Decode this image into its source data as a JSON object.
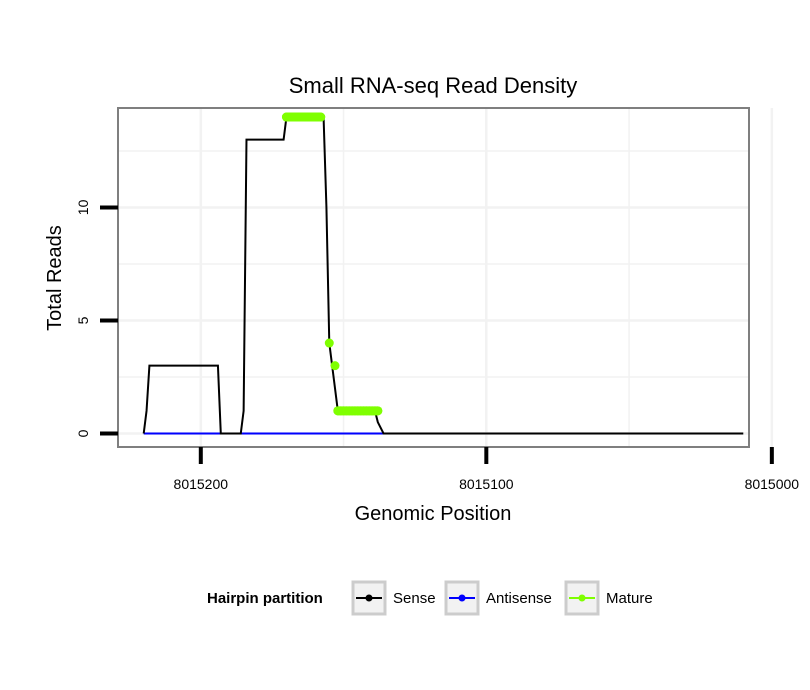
{
  "chart_data": {
    "type": "line",
    "title": "Small RNA-seq Read Density",
    "xlabel": "Genomic Position",
    "ylabel": "Total Reads",
    "x_reversed": true,
    "xlim": [
      8015229,
      8015008
    ],
    "ylim": [
      -0.6,
      14.4
    ],
    "x_ticks": [
      8015200,
      8015100,
      8015000
    ],
    "x_tick_labels": [
      "8015200",
      "8015100",
      "8015000"
    ],
    "y_ticks": [
      0,
      5,
      10
    ],
    "y_tick_labels": [
      "0",
      "5",
      "10"
    ],
    "x_minor_gridlines": [
      8015150,
      8015050
    ],
    "y_minor_gridlines": [
      2.5,
      7.5,
      12.5
    ],
    "grid": true,
    "legend": {
      "title": "Hairpin partition",
      "position": "bottom",
      "entries": [
        {
          "label": "Sense",
          "color": "#000000"
        },
        {
          "label": "Antisense",
          "color": "#0000ff"
        },
        {
          "label": "Mature",
          "color": "#7fff00"
        }
      ]
    },
    "series": [
      {
        "name": "Sense",
        "color": "#000000",
        "x": [
          8015220,
          8015219,
          8015218,
          8015194,
          8015193,
          8015186,
          8015185,
          8015184,
          8015183,
          8015171,
          8015170,
          8015158,
          8015157,
          8015156,
          8015155,
          8015154,
          8015152,
          8015151,
          8015150,
          8015149,
          8015148,
          8015147,
          8015146,
          8015145,
          8015144,
          8015143,
          8015142,
          8015141,
          8015140,
          8015139,
          8015138,
          8015136,
          8015135,
          8015134,
          8015010
        ],
        "y": [
          0,
          1,
          3,
          3,
          0,
          0,
          1,
          13,
          13,
          13,
          14,
          14,
          14,
          10,
          4,
          3,
          1,
          1,
          1,
          1,
          1,
          1,
          1,
          1,
          1,
          1,
          1,
          1,
          1,
          1,
          0.5,
          0,
          0,
          0,
          0
        ]
      },
      {
        "name": "Antisense",
        "color": "#0000ff",
        "x": [
          8015220,
          8015134
        ],
        "y": [
          0,
          0
        ]
      },
      {
        "name": "Mature",
        "color": "#7fff00",
        "x": [
          8015170,
          8015169,
          8015168,
          8015167,
          8015166,
          8015165,
          8015164,
          8015163,
          8015162,
          8015161,
          8015160,
          8015159,
          8015158,
          8015155,
          8015153,
          8015152,
          8015151,
          8015150,
          8015149,
          8015148,
          8015147,
          8015146,
          8015145,
          8015144,
          8015143,
          8015142,
          8015141,
          8015140,
          8015139,
          8015138
        ],
        "y": [
          14,
          14,
          14,
          14,
          14,
          14,
          14,
          14,
          14,
          14,
          14,
          14,
          14,
          4,
          3,
          1,
          1,
          1,
          1,
          1,
          1,
          1,
          1,
          1,
          1,
          1,
          1,
          1,
          1,
          1
        ]
      }
    ]
  }
}
